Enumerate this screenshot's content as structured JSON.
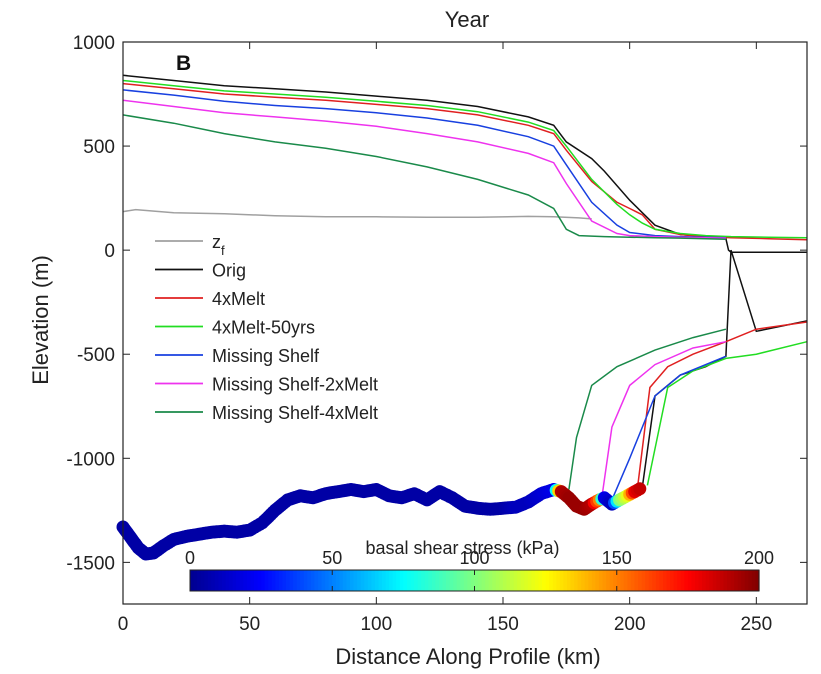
{
  "chart_data": {
    "type": "line",
    "title": "Year",
    "panel_label": "B",
    "xlabel": "Distance Along Profile (km)",
    "ylabel": "Elevation (m)",
    "xlim": [
      0,
      270
    ],
    "ylim": [
      -1700,
      1000
    ],
    "x_ticks": [
      "0",
      "50",
      "100",
      "150",
      "200",
      "250"
    ],
    "y_ticks": [
      "-1500",
      "-1000",
      "-500",
      "0",
      "500",
      "1000"
    ],
    "x_tick_values": [
      0,
      50,
      100,
      150,
      200,
      250
    ],
    "y_tick_values": [
      -1500,
      -1000,
      -500,
      0,
      500,
      1000
    ],
    "legend_position": "left",
    "series": [
      {
        "name": "z_f",
        "legend_main": "z",
        "legend_sub": "f",
        "color": "#a0a0a0",
        "x": [
          0,
          5,
          20,
          40,
          60,
          80,
          100,
          120,
          140,
          160,
          170,
          180,
          185
        ],
        "y": [
          185,
          195,
          180,
          175,
          165,
          160,
          160,
          158,
          158,
          162,
          160,
          155,
          150
        ]
      },
      {
        "name": "Orig",
        "color": "#111111",
        "x": [
          0,
          20,
          40,
          60,
          80,
          100,
          120,
          140,
          160,
          170,
          175,
          185,
          190,
          200,
          205,
          210,
          220,
          230,
          238,
          239,
          240,
          250,
          270
        ],
        "y": [
          840,
          815,
          790,
          775,
          760,
          740,
          720,
          690,
          640,
          600,
          520,
          440,
          380,
          240,
          180,
          120,
          75,
          65,
          55,
          0,
          -10,
          -10,
          -10
        ]
      },
      {
        "name": "4xMelt",
        "color": "#e02020",
        "x": [
          0,
          20,
          40,
          60,
          80,
          100,
          120,
          140,
          160,
          170,
          175,
          185,
          195,
          200,
          205,
          210,
          220,
          230,
          240,
          255,
          270
        ],
        "y": [
          800,
          775,
          750,
          735,
          720,
          700,
          680,
          650,
          600,
          560,
          480,
          330,
          230,
          200,
          170,
          100,
          75,
          65,
          60,
          55,
          50
        ]
      },
      {
        "name": "4xMelt-50yrs",
        "color": "#22dd22",
        "x": [
          0,
          20,
          40,
          60,
          80,
          100,
          120,
          140,
          160,
          170,
          175,
          185,
          195,
          200,
          205,
          210,
          220,
          230,
          240,
          255,
          270
        ],
        "y": [
          815,
          790,
          765,
          750,
          735,
          715,
          695,
          665,
          615,
          575,
          500,
          340,
          220,
          170,
          130,
          100,
          80,
          70,
          65,
          62,
          60
        ]
      },
      {
        "name": "Missing Shelf",
        "color": "#1840e0",
        "x": [
          0,
          20,
          40,
          60,
          80,
          100,
          120,
          140,
          160,
          170,
          175,
          185,
          195,
          200,
          210,
          220,
          230,
          238
        ],
        "y": [
          770,
          745,
          715,
          695,
          680,
          660,
          635,
          600,
          545,
          500,
          410,
          230,
          120,
          85,
          70,
          65,
          62,
          60
        ]
      },
      {
        "name": "Missing Shelf-2xMelt",
        "color": "#ee33ee",
        "x": [
          0,
          20,
          40,
          60,
          80,
          100,
          120,
          140,
          160,
          170,
          175,
          185,
          195,
          200,
          210,
          220,
          230,
          238
        ],
        "y": [
          720,
          690,
          660,
          640,
          620,
          595,
          560,
          520,
          465,
          420,
          320,
          140,
          80,
          70,
          65,
          62,
          60,
          58
        ]
      },
      {
        "name": "Missing Shelf-4xMelt",
        "color": "#1a8a4a",
        "x": [
          0,
          20,
          40,
          60,
          80,
          100,
          120,
          140,
          160,
          170,
          175,
          180,
          190,
          200,
          210,
          220,
          230,
          238
        ],
        "y": [
          650,
          610,
          560,
          520,
          490,
          450,
          400,
          340,
          265,
          200,
          100,
          70,
          65,
          62,
          60,
          58,
          55,
          52
        ]
      }
    ],
    "bed_series": [
      {
        "color": "#111111",
        "x": [
          205,
          210,
          220,
          230,
          238,
          240,
          250,
          270
        ],
        "y": [
          -1140,
          -700,
          -600,
          -560,
          -510,
          0,
          -390,
          -340
        ]
      },
      {
        "color": "#22dd22",
        "x": [
          207,
          215,
          225,
          238,
          250,
          270
        ],
        "y": [
          -1130,
          -660,
          -580,
          -520,
          -500,
          -440
        ]
      },
      {
        "color": "#e02020",
        "x": [
          203,
          208,
          215,
          225,
          238,
          250,
          270
        ],
        "y": [
          -1150,
          -660,
          -560,
          -500,
          -440,
          -380,
          -345
        ]
      },
      {
        "color": "#1840e0",
        "x": [
          193,
          200,
          210,
          220,
          238
        ],
        "y": [
          -1200,
          -1000,
          -700,
          -600,
          -510
        ]
      },
      {
        "color": "#ee33ee",
        "x": [
          189,
          193,
          200,
          210,
          225,
          238
        ],
        "y": [
          -1190,
          -850,
          -650,
          -550,
          -470,
          -440
        ]
      },
      {
        "color": "#1a8a4a",
        "x": [
          176,
          179,
          185,
          195,
          210,
          225,
          238
        ],
        "y": [
          -1150,
          -900,
          -650,
          -560,
          -480,
          -420,
          -380
        ]
      }
    ],
    "bed": {
      "x": [
        0,
        3,
        6,
        9,
        12,
        16,
        20,
        25,
        30,
        35,
        40,
        45,
        50,
        55,
        60,
        65,
        70,
        75,
        80,
        85,
        90,
        95,
        100,
        105,
        110,
        115,
        120,
        125,
        130,
        135,
        140,
        145,
        150,
        155,
        160,
        165,
        170,
        173,
        176,
        179,
        182,
        185,
        188,
        190,
        193,
        196,
        199,
        202,
        205
      ],
      "y": [
        -1330,
        -1380,
        -1430,
        -1460,
        -1455,
        -1420,
        -1390,
        -1375,
        -1365,
        -1355,
        -1350,
        -1355,
        -1345,
        -1310,
        -1250,
        -1200,
        -1180,
        -1190,
        -1170,
        -1160,
        -1150,
        -1160,
        -1150,
        -1180,
        -1190,
        -1170,
        -1200,
        -1160,
        -1190,
        -1230,
        -1240,
        -1245,
        -1240,
        -1235,
        -1210,
        -1170,
        -1150,
        -1160,
        -1190,
        -1230,
        -1245,
        -1220,
        -1200,
        -1190,
        -1220,
        -1200,
        -1180,
        -1160,
        -1140
      ],
      "stress_kpa": [
        5,
        5,
        5,
        5,
        5,
        5,
        5,
        5,
        5,
        5,
        5,
        5,
        5,
        5,
        5,
        5,
        5,
        5,
        5,
        5,
        5,
        5,
        5,
        5,
        5,
        5,
        5,
        5,
        5,
        5,
        5,
        5,
        5,
        10,
        10,
        15,
        20,
        190,
        195,
        195,
        195,
        190,
        150,
        20,
        10,
        100,
        120,
        180,
        190
      ]
    },
    "colorbar": {
      "label": "basal shear stress (kPa)",
      "range": [
        0,
        200
      ],
      "ticks": [
        "0",
        "50",
        "100",
        "150",
        "200"
      ],
      "tick_values": [
        0,
        50,
        100,
        150,
        200
      ],
      "colormap": "jet"
    }
  }
}
